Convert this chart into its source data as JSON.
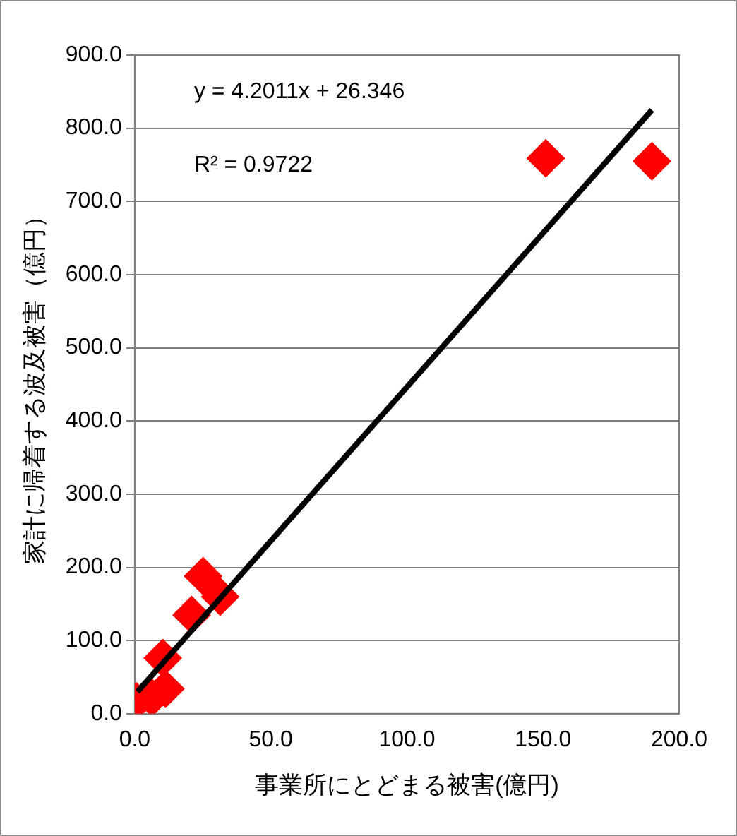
{
  "chart_data": {
    "type": "scatter",
    "xlabel": "事業所にとどまる被害(億円)",
    "ylabel": "家計に帰着する波及被害（億円）",
    "series": [
      {
        "color": "#ff0000",
        "marker": "diamond",
        "x": [
          0.6,
          6.3,
          10.3,
          11.3,
          20.9,
          25.1,
          31.4,
          151,
          190
        ],
        "values": [
          17,
          22,
          76,
          34,
          135,
          188,
          160,
          759,
          755
        ]
      },
      {
        "type": "line",
        "color": "#000000",
        "x": [
          1,
          190
        ],
        "values": [
          30,
          825
        ]
      }
    ],
    "xlim": [
      0,
      200
    ],
    "ylim": [
      0,
      900
    ],
    "xticks": [
      {
        "value": 0,
        "label": "0.0"
      },
      {
        "value": 50,
        "label": "50.0"
      },
      {
        "value": 100,
        "label": "100.0"
      },
      {
        "value": 150,
        "label": "150.0"
      },
      {
        "value": 200,
        "label": "200.0"
      }
    ],
    "yticks": [
      {
        "value": 0,
        "label": "0.0"
      },
      {
        "value": 100,
        "label": "100.0"
      },
      {
        "value": 200,
        "label": "200.0"
      },
      {
        "value": 300,
        "label": "300.0"
      },
      {
        "value": 400,
        "label": "400.0"
      },
      {
        "value": 500,
        "label": "500.0"
      },
      {
        "value": 600,
        "label": "600.0"
      },
      {
        "value": 700,
        "label": "700.0"
      },
      {
        "value": 800,
        "label": "800.0"
      },
      {
        "value": 900,
        "label": "900.0"
      }
    ],
    "annotations": [
      "y = 4.2011x + 26.346",
      "R² = 0.9722"
    ],
    "grid": "y",
    "legend": false
  }
}
